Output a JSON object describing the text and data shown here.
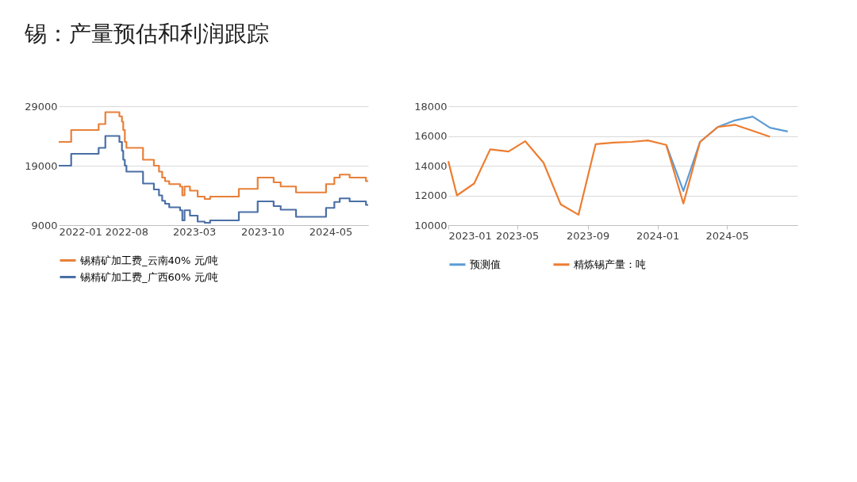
{
  "chart_data": [
    {
      "type": "step",
      "title": "锡：产量预估和利润跟踪",
      "x": [
        "2022-01-01",
        "2022-02-09",
        "2022-05-06",
        "2022-05-27",
        "2022-07-10",
        "2022-07-18",
        "2022-07-22",
        "2022-07-27",
        "2022-08-01",
        "2022-09-22",
        "2022-10-26",
        "2022-11-11",
        "2022-11-21",
        "2022-11-30",
        "2022-12-13",
        "2023-01-16",
        "2023-01-23",
        "2023-01-30",
        "2023-02-16",
        "2023-03-12",
        "2023-04-03",
        "2023-04-20",
        "2023-07-19",
        "2023-09-16",
        "2023-11-05",
        "2023-11-27",
        "2024-01-14",
        "2024-04-17",
        "2024-05-13",
        "2024-05-30",
        "2024-06-30",
        "2024-08-20",
        "2024-08-27"
      ],
      "series": [
        {
          "name": "锡精矿加工费_云南40% 元/吨",
          "color": "#e8803a",
          "values": [
            23000,
            25000,
            26000,
            28000,
            27300,
            26400,
            25000,
            23000,
            22000,
            20000,
            19000,
            18000,
            17000,
            16400,
            15900,
            15500,
            14000,
            15500,
            14800,
            13800,
            13400,
            13800,
            15100,
            17000,
            16200,
            15500,
            14500,
            15900,
            17000,
            17500,
            17000,
            16400,
            16400
          ]
        },
        {
          "name": "锡精矿加工费_广西60% 元/吨",
          "color": "#4a6fa5",
          "values": [
            19000,
            21000,
            22000,
            24000,
            23000,
            21500,
            20000,
            19000,
            18000,
            16000,
            15000,
            14000,
            13100,
            12600,
            12000,
            11500,
            9800,
            11500,
            10600,
            9600,
            9400,
            9800,
            11200,
            13000,
            12200,
            11600,
            10400,
            11900,
            12900,
            13500,
            13000,
            12400,
            12400
          ]
        }
      ],
      "xlim": [
        "2022-01-01",
        "2024-08-27"
      ],
      "xticks": [
        {
          "value": "2022-01-01",
          "label": "2022-01"
        },
        {
          "value": "2022-08-01",
          "label": "2022-08"
        },
        {
          "value": "2023-03-01",
          "label": "2023-03"
        },
        {
          "value": "2023-10-01",
          "label": "2023-10"
        },
        {
          "value": "2024-05-01",
          "label": "2024-05"
        }
      ],
      "ylim": [
        9000,
        29000
      ],
      "yticks": [
        9000,
        19000,
        29000
      ],
      "grid": "y",
      "legend": "bottom"
    },
    {
      "type": "line",
      "series": [
        {
          "name": "预测值",
          "color": "#5b9bd5",
          "x": [
            "2024-01-16",
            "2024-02-15",
            "2024-03-15",
            "2024-04-15",
            "2024-05-15",
            "2024-06-15",
            "2024-07-15",
            "2024-08-15"
          ],
          "values": [
            15400,
            12300,
            15600,
            16600,
            17050,
            17300,
            16550,
            16300
          ]
        },
        {
          "name": "精炼锡产量：吨",
          "color": "#ed7d31",
          "x": [
            "2023-01-01",
            "2023-01-16",
            "2023-02-15",
            "2023-03-15",
            "2023-04-16",
            "2023-05-15",
            "2023-06-16",
            "2023-07-16",
            "2023-08-16",
            "2023-09-15",
            "2023-10-16",
            "2023-11-16",
            "2023-12-15",
            "2024-01-16",
            "2024-02-15",
            "2024-03-15",
            "2024-04-15",
            "2024-05-15",
            "2024-06-15",
            "2024-07-15"
          ],
          "values": [
            14300,
            12000,
            12800,
            15100,
            14950,
            15650,
            14200,
            11400,
            10700,
            15450,
            15550,
            15600,
            15700,
            15400,
            11450,
            15600,
            16600,
            16750,
            16350,
            15950
          ]
        }
      ],
      "xlim": [
        "2023-01-01",
        "2024-09-01"
      ],
      "xticks": [
        {
          "value": "2023-01-01",
          "label": "2023-01"
        },
        {
          "value": "2023-05-01",
          "label": "2023-05"
        },
        {
          "value": "2023-09-01",
          "label": "2023-09"
        },
        {
          "value": "2024-01-01",
          "label": "2024-01"
        },
        {
          "value": "2024-05-01",
          "label": "2024-05"
        }
      ],
      "ylim": [
        10000,
        18000
      ],
      "yticks": [
        10000,
        12000,
        14000,
        16000,
        18000
      ],
      "grid": "y",
      "legend": "bottom"
    }
  ]
}
